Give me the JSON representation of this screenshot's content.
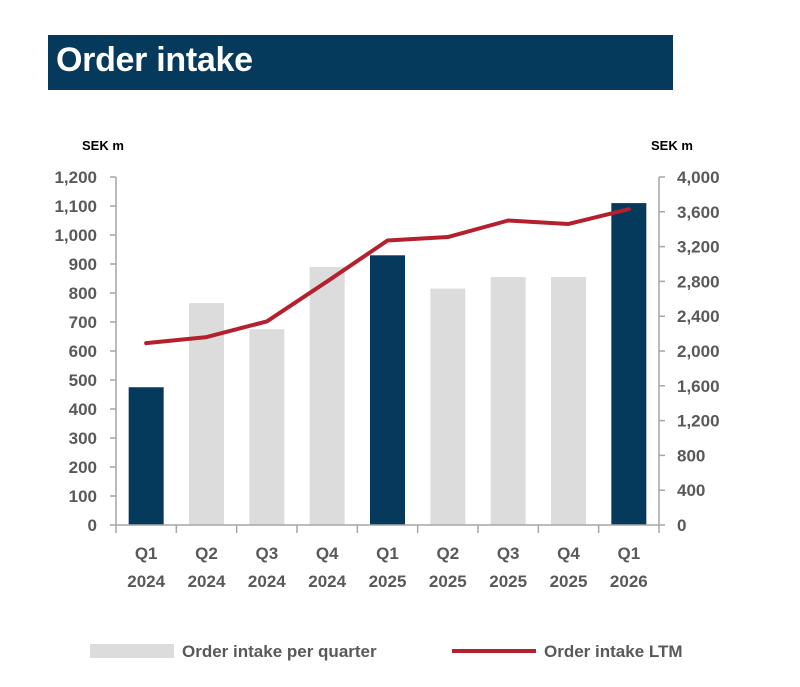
{
  "title": "Order intake",
  "chart_data": {
    "type": "bar",
    "categories": [
      [
        "Q1",
        "2024"
      ],
      [
        "Q2",
        "2024"
      ],
      [
        "Q3",
        "2024"
      ],
      [
        "Q4",
        "2024"
      ],
      [
        "Q1",
        "2025"
      ],
      [
        "Q2",
        "2025"
      ],
      [
        "Q3",
        "2025"
      ],
      [
        "Q4",
        "2025"
      ],
      [
        "Q1",
        "2026"
      ]
    ],
    "left_axis": {
      "unit": "SEK m",
      "ylim": [
        0,
        1200
      ],
      "ticks": [
        "0",
        "100",
        "200",
        "300",
        "400",
        "500",
        "600",
        "700",
        "800",
        "900",
        "1,000",
        "1,100",
        "1,200"
      ]
    },
    "right_axis": {
      "unit": "SEK m",
      "ylim": [
        0,
        4000
      ],
      "ticks": [
        "0",
        "400",
        "800",
        "1,200",
        "1,600",
        "2,000",
        "2,400",
        "2,800",
        "3,200",
        "3,600",
        "4,000"
      ]
    },
    "series": [
      {
        "name": "Order intake per quarter",
        "type": "bar",
        "axis": "left",
        "values": [
          475,
          765,
          675,
          890,
          930,
          815,
          855,
          855,
          1110
        ],
        "highlight": [
          true,
          false,
          false,
          false,
          true,
          false,
          false,
          false,
          true
        ]
      },
      {
        "name": "Order intake LTM",
        "type": "line",
        "axis": "right",
        "values": [
          2090,
          2160,
          2340,
          2800,
          3270,
          3310,
          3500,
          3460,
          3630
        ]
      }
    ],
    "colors": {
      "bar_highlight": "#063a5c",
      "bar_normal": "#dcdcdd",
      "line": "#b5202e",
      "axis": "#a6a6a6"
    },
    "legend_position": "bottom",
    "grid": false
  }
}
